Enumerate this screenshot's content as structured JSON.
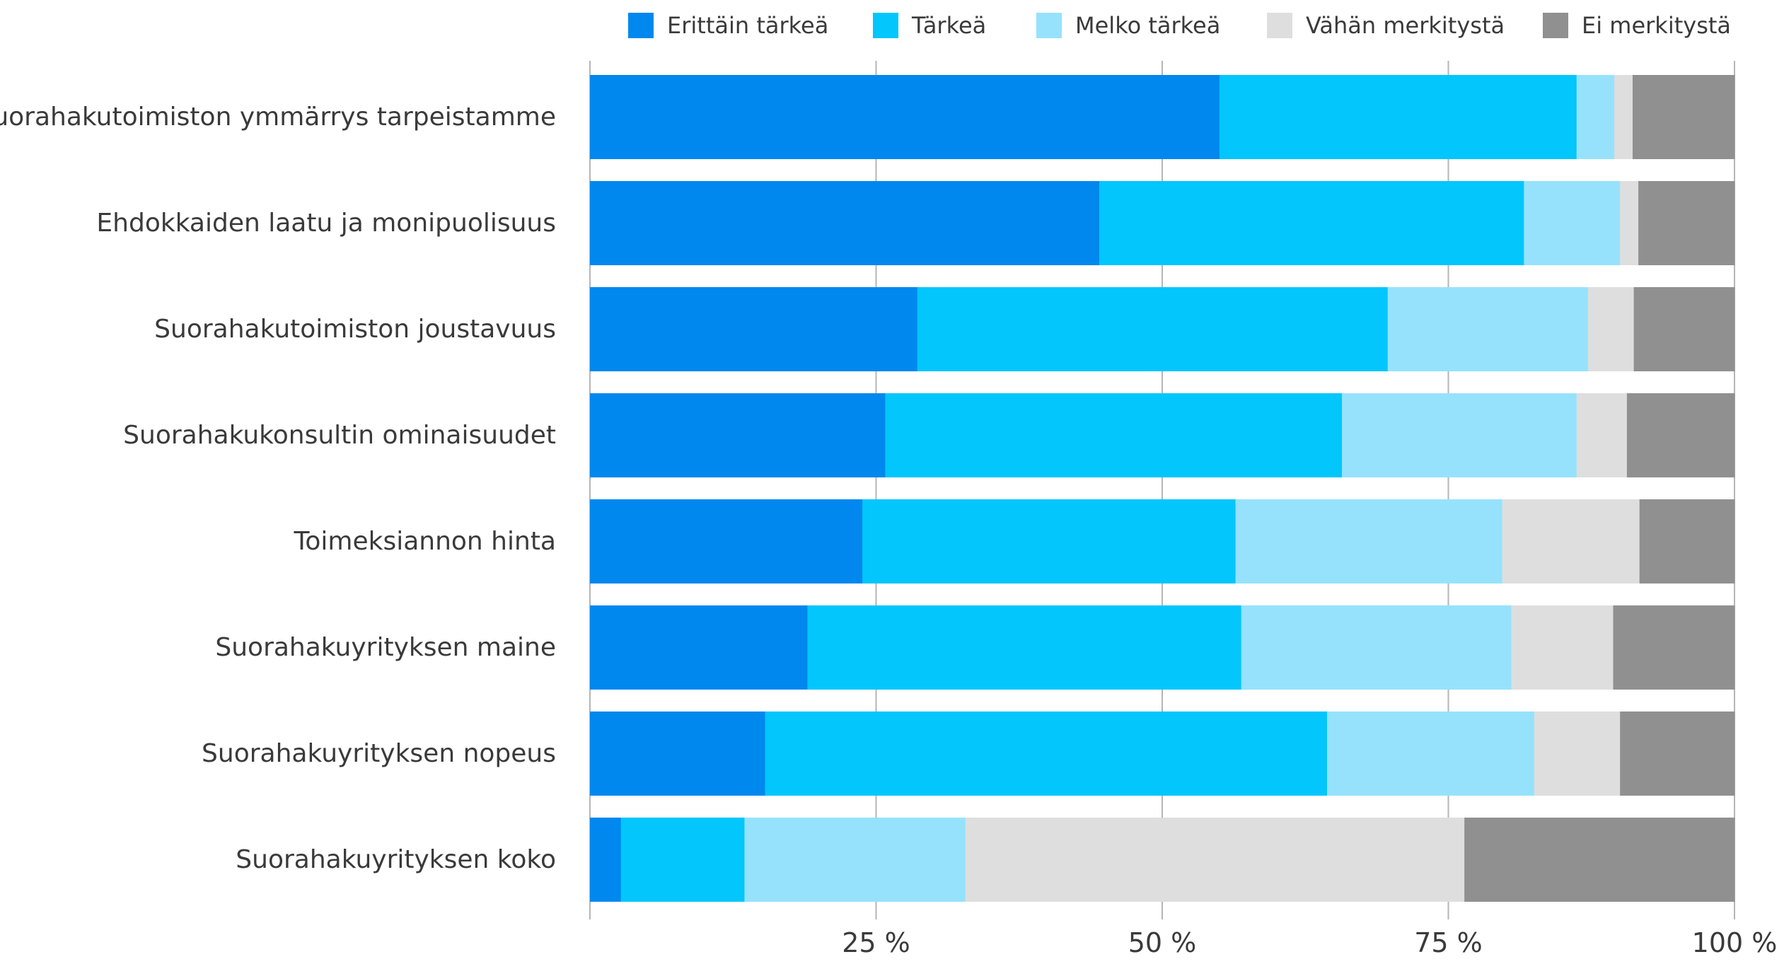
{
  "chart_data": {
    "type": "bar",
    "orientation": "horizontal",
    "stacked": "percent",
    "title": "",
    "xlabel": "",
    "ylabel": "",
    "xlim": [
      0,
      100
    ],
    "x_ticks": [
      25,
      50,
      75,
      100
    ],
    "x_tick_labels": [
      "25 %",
      "50 %",
      "75 %",
      "100 %"
    ],
    "grid": "vertical",
    "legend_position": "top-right",
    "categories": [
      "Suorahakutoimiston ymmärrys tarpeistamme",
      "Ehdokkaiden laatu ja monipuolisuus",
      "Suorahakutoimiston joustavuus",
      "Suorahakukonsultin ominaisuudet",
      "Toimeksiannon hinta",
      "Suorahakuyrityksen maine",
      "Suorahakuyrityksen nopeus",
      "Suorahakuyrityksen koko"
    ],
    "series": [
      {
        "name": "Erittäin tärkeä",
        "color": "#0088ee",
        "values": [
          55.0,
          44.5,
          28.6,
          25.8,
          23.8,
          19.0,
          15.3,
          2.7
        ]
      },
      {
        "name": "Tärkeä",
        "color": "#03c6fc",
        "values": [
          31.2,
          37.1,
          41.1,
          39.9,
          32.6,
          37.9,
          49.1,
          10.8
        ]
      },
      {
        "name": "Melko tärkeä",
        "color": "#96e2fd",
        "values": [
          3.3,
          8.4,
          17.5,
          20.5,
          23.3,
          23.6,
          18.1,
          19.3
        ]
      },
      {
        "name": "Vähän merkitystä",
        "color": "#dedede",
        "values": [
          1.6,
          1.6,
          4.0,
          4.4,
          12.0,
          8.9,
          7.5,
          43.6
        ]
      },
      {
        "name": "Ei merkitystä",
        "color": "#909090",
        "values": [
          8.9,
          8.4,
          8.8,
          9.4,
          8.3,
          10.6,
          10.0,
          23.6
        ]
      }
    ]
  }
}
